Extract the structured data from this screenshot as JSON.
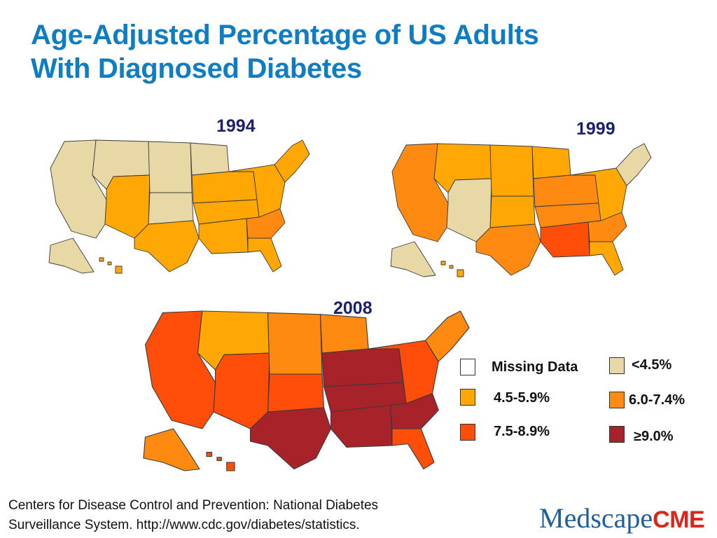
{
  "title": {
    "line1": "Age-Adjusted Percentage of US Adults",
    "line2": "With Diagnosed Diabetes"
  },
  "colors": {
    "missing": "#ffffff",
    "lt_4_5": "#e8d8a6",
    "c_4_5_5_9": "#ffa705",
    "c_6_0_7_4": "#ff8a12",
    "c_7_5_8_9": "#ff4d0a",
    "ge_9_0": "#a8222a"
  },
  "maps": [
    {
      "year": "1994",
      "categories": {
        "west": "lt_4_5",
        "mountain_n": "lt_4_5",
        "mountain_s": "c_4_5_5_9",
        "plains_n": "lt_4_5",
        "plains_s": "lt_4_5",
        "texas": "c_4_5_5_9",
        "upper_midwest": "lt_4_5",
        "lower_midwest": "c_4_5_5_9",
        "south_central": "c_4_5_5_9",
        "deep_south": "c_4_5_5_9",
        "southeast": "c_6_0_7_4",
        "florida": "c_4_5_5_9",
        "mid_atlantic": "c_4_5_5_9",
        "new_england": "c_4_5_5_9",
        "alaska": "lt_4_5",
        "hawaii": "c_4_5_5_9"
      }
    },
    {
      "year": "1999",
      "categories": {
        "west": "c_6_0_7_4",
        "mountain_n": "c_4_5_5_9",
        "mountain_s": "lt_4_5",
        "plains_n": "c_4_5_5_9",
        "plains_s": "c_4_5_5_9",
        "texas": "c_6_0_7_4",
        "upper_midwest": "c_4_5_5_9",
        "lower_midwest": "c_6_0_7_4",
        "south_central": "c_6_0_7_4",
        "deep_south": "c_7_5_8_9",
        "southeast": "c_6_0_7_4",
        "florida": "c_4_5_5_9",
        "mid_atlantic": "c_4_5_5_9",
        "new_england": "lt_4_5",
        "alaska": "lt_4_5",
        "hawaii": "c_4_5_5_9"
      }
    },
    {
      "year": "2008",
      "categories": {
        "west": "c_7_5_8_9",
        "mountain_n": "c_4_5_5_9",
        "mountain_s": "c_7_5_8_9",
        "plains_n": "c_6_0_7_4",
        "plains_s": "c_7_5_8_9",
        "texas": "ge_9_0",
        "upper_midwest": "c_6_0_7_4",
        "lower_midwest": "ge_9_0",
        "south_central": "ge_9_0",
        "deep_south": "ge_9_0",
        "southeast": "ge_9_0",
        "florida": "c_7_5_8_9",
        "mid_atlantic": "c_7_5_8_9",
        "new_england": "c_6_0_7_4",
        "alaska": "c_6_0_7_4",
        "hawaii": "c_7_5_8_9"
      }
    }
  ],
  "legend": [
    {
      "label": "Missing Data",
      "color_key": "missing"
    },
    {
      "label": "<4.5%",
      "color_key": "lt_4_5"
    },
    {
      "label": "4.5-5.9%",
      "color_key": "c_4_5_5_9"
    },
    {
      "label": "6.0-7.4%",
      "color_key": "c_6_0_7_4"
    },
    {
      "label": "7.5-8.9%",
      "color_key": "c_7_5_8_9"
    },
    {
      "label": "≥9.0%",
      "color_key": "ge_9_0"
    }
  ],
  "citation": {
    "line1": "Centers for Disease Control and Prevention: National Diabetes",
    "line2": "Surveillance System. http://www.cdc.gov/diabetes/statistics."
  },
  "logo": {
    "part1": "M",
    "part2": "edscape",
    "part3": "CME"
  }
}
